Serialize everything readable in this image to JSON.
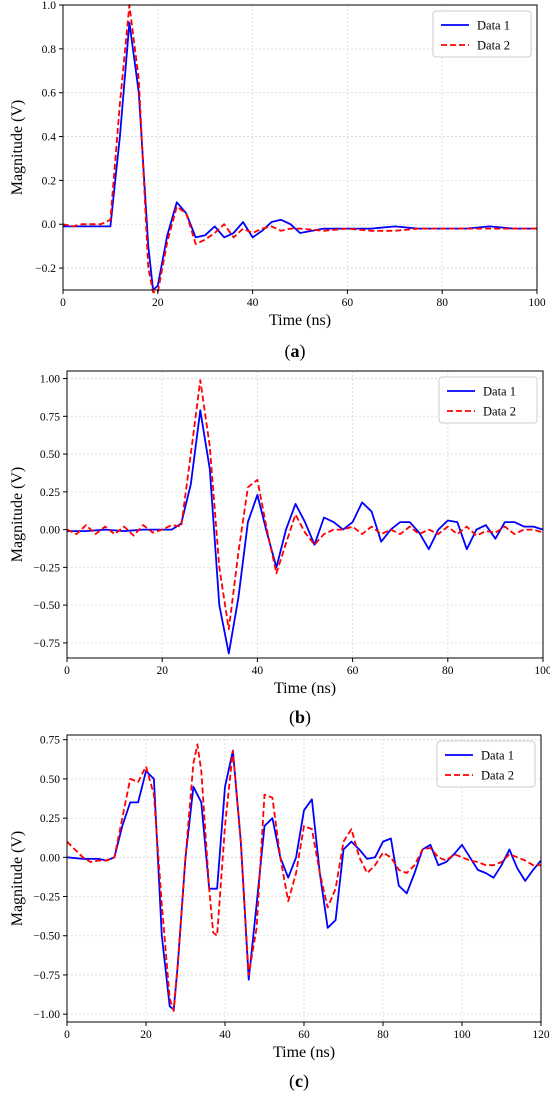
{
  "chart_data": [
    {
      "type": "line",
      "panel": "a",
      "caption": "(a)",
      "xlabel": "Time (ns)",
      "ylabel": "Magnitude (V)",
      "xlim": [
        0,
        100
      ],
      "ylim": [
        -0.3,
        1.0
      ],
      "xticks": [
        0,
        20,
        40,
        60,
        80,
        100
      ],
      "yticks": [
        -0.2,
        0.0,
        0.2,
        0.4,
        0.6,
        0.8,
        1.0
      ],
      "ytick_decimals": 1,
      "grid": true,
      "legend_position": "top-right",
      "series": [
        {
          "name": "Data 1",
          "color": "#0000ff",
          "style": "solid",
          "x": [
            0,
            2,
            4,
            6,
            8,
            10,
            12,
            14,
            16,
            18,
            19,
            20,
            22,
            24,
            26,
            28,
            30,
            32,
            34,
            36,
            38,
            40,
            42,
            44,
            46,
            48,
            50,
            55,
            60,
            65,
            70,
            75,
            80,
            85,
            90,
            95,
            100
          ],
          "y": [
            -0.01,
            -0.01,
            -0.01,
            -0.01,
            -0.01,
            -0.01,
            0.4,
            0.92,
            0.6,
            -0.1,
            -0.3,
            -0.28,
            -0.05,
            0.1,
            0.05,
            -0.06,
            -0.05,
            -0.01,
            -0.06,
            -0.04,
            0.01,
            -0.06,
            -0.03,
            0.01,
            0.02,
            0.0,
            -0.04,
            -0.02,
            -0.02,
            -0.02,
            -0.01,
            -0.02,
            -0.02,
            -0.02,
            -0.01,
            -0.02,
            -0.02
          ]
        },
        {
          "name": "Data 2",
          "color": "#ff0000",
          "style": "dashed",
          "x": [
            0,
            2,
            4,
            6,
            8,
            10,
            12,
            14,
            16,
            18,
            19,
            20,
            22,
            24,
            26,
            28,
            30,
            32,
            34,
            36,
            38,
            40,
            42,
            44,
            46,
            48,
            50,
            55,
            60,
            65,
            70,
            75,
            80,
            85,
            90,
            95,
            100
          ],
          "y": [
            0.0,
            -0.01,
            0.0,
            0.0,
            0.0,
            0.02,
            0.55,
            1.0,
            0.66,
            -0.2,
            -0.31,
            -0.31,
            -0.08,
            0.08,
            0.05,
            -0.09,
            -0.07,
            -0.04,
            0.0,
            -0.06,
            -0.02,
            -0.04,
            -0.02,
            -0.01,
            -0.03,
            -0.02,
            -0.02,
            -0.03,
            -0.02,
            -0.03,
            -0.03,
            -0.02,
            -0.02,
            -0.02,
            -0.02,
            -0.02,
            -0.02
          ]
        }
      ]
    },
    {
      "type": "line",
      "panel": "b",
      "caption": "(b)",
      "xlabel": "Time (ns)",
      "ylabel": "Magnitude (V)",
      "xlim": [
        0,
        100
      ],
      "ylim": [
        -0.85,
        1.05
      ],
      "xticks": [
        0,
        20,
        40,
        60,
        80,
        100
      ],
      "yticks": [
        -0.75,
        -0.5,
        -0.25,
        0.0,
        0.25,
        0.5,
        0.75,
        1.0
      ],
      "ytick_decimals": 2,
      "grid": true,
      "legend_position": "top-right",
      "series": [
        {
          "name": "Data 1",
          "color": "#0000ff",
          "style": "solid",
          "x": [
            0,
            4,
            8,
            12,
            16,
            20,
            22,
            24,
            26,
            28,
            30,
            32,
            34,
            36,
            38,
            40,
            42,
            44,
            46,
            48,
            50,
            52,
            54,
            56,
            58,
            60,
            62,
            64,
            66,
            68,
            70,
            72,
            74,
            76,
            78,
            80,
            82,
            84,
            86,
            88,
            90,
            92,
            94,
            96,
            98,
            100
          ],
          "y": [
            -0.01,
            -0.01,
            0.0,
            -0.01,
            0.0,
            0.0,
            0.0,
            0.04,
            0.3,
            0.79,
            0.4,
            -0.5,
            -0.82,
            -0.45,
            0.05,
            0.23,
            -0.02,
            -0.25,
            0.0,
            0.17,
            0.05,
            -0.1,
            0.08,
            0.05,
            0.0,
            0.05,
            0.18,
            0.12,
            -0.08,
            0.0,
            0.05,
            0.05,
            -0.02,
            -0.13,
            0.0,
            0.06,
            0.05,
            -0.13,
            0.0,
            0.03,
            -0.06,
            0.05,
            0.05,
            0.02,
            0.02,
            0.0
          ]
        },
        {
          "name": "Data 2",
          "color": "#ff0000",
          "style": "dashed",
          "x": [
            0,
            2,
            4,
            6,
            8,
            10,
            12,
            14,
            16,
            18,
            20,
            22,
            24,
            26,
            28,
            30,
            32,
            34,
            36,
            38,
            40,
            42,
            44,
            46,
            48,
            50,
            52,
            54,
            56,
            58,
            60,
            62,
            64,
            66,
            68,
            70,
            72,
            74,
            76,
            78,
            80,
            82,
            84,
            86,
            88,
            90,
            92,
            94,
            96,
            98,
            100
          ],
          "y": [
            0.0,
            -0.03,
            0.03,
            -0.03,
            0.02,
            -0.03,
            0.02,
            -0.04,
            0.03,
            -0.02,
            0.0,
            0.03,
            0.02,
            0.5,
            0.99,
            0.55,
            -0.25,
            -0.66,
            -0.15,
            0.28,
            0.33,
            0.0,
            -0.29,
            -0.09,
            0.1,
            -0.02,
            -0.1,
            -0.03,
            0.0,
            0.0,
            0.02,
            -0.03,
            0.02,
            -0.03,
            0.0,
            -0.03,
            0.02,
            -0.03,
            0.0,
            -0.03,
            0.02,
            -0.03,
            0.02,
            -0.04,
            -0.01,
            -0.02,
            0.02,
            -0.03,
            0.0,
            0.0,
            -0.02
          ]
        }
      ]
    },
    {
      "type": "line",
      "panel": "c",
      "caption": "(c)",
      "xlabel": "Time (ns)",
      "ylabel": "Magnitude (V)",
      "xlim": [
        0,
        120
      ],
      "ylim": [
        -1.05,
        0.78
      ],
      "xticks": [
        0,
        20,
        40,
        60,
        80,
        100,
        120
      ],
      "yticks": [
        -1.0,
        -0.75,
        -0.5,
        -0.25,
        0.0,
        0.25,
        0.5,
        0.75
      ],
      "ytick_decimals": 2,
      "grid": true,
      "legend_position": "top-right",
      "series": [
        {
          "name": "Data 1",
          "color": "#0000ff",
          "style": "solid",
          "x": [
            0,
            4,
            8,
            10,
            12,
            14,
            16,
            18,
            20,
            22,
            24,
            26,
            27,
            28,
            30,
            32,
            34,
            36,
            38,
            40,
            42,
            44,
            46,
            48,
            50,
            52,
            54,
            56,
            58,
            60,
            62,
            64,
            66,
            68,
            70,
            72,
            74,
            76,
            78,
            80,
            82,
            84,
            86,
            88,
            90,
            92,
            94,
            96,
            98,
            100,
            102,
            104,
            106,
            108,
            110,
            112,
            114,
            116,
            118,
            120
          ],
          "y": [
            0.0,
            -0.01,
            -0.01,
            -0.02,
            0.0,
            0.2,
            0.35,
            0.35,
            0.55,
            0.5,
            -0.5,
            -0.95,
            -0.97,
            -0.7,
            0.0,
            0.45,
            0.35,
            -0.2,
            -0.2,
            0.45,
            0.68,
            0.1,
            -0.78,
            -0.3,
            0.2,
            0.25,
            0.0,
            -0.13,
            0.0,
            0.3,
            0.37,
            -0.1,
            -0.45,
            -0.4,
            0.05,
            0.1,
            0.05,
            -0.01,
            0.0,
            0.1,
            0.12,
            -0.18,
            -0.23,
            -0.1,
            0.05,
            0.08,
            -0.05,
            -0.03,
            0.02,
            0.08,
            0.0,
            -0.08,
            -0.1,
            -0.13,
            -0.05,
            0.05,
            -0.07,
            -0.15,
            -0.08,
            -0.02
          ]
        },
        {
          "name": "Data 2",
          "color": "#ff0000",
          "style": "dashed",
          "x": [
            0,
            2,
            4,
            6,
            8,
            10,
            12,
            14,
            16,
            18,
            20,
            22,
            24,
            26,
            27,
            28,
            30,
            32,
            33,
            34,
            36,
            37,
            38,
            40,
            42,
            44,
            46,
            48,
            50,
            52,
            54,
            56,
            58,
            60,
            62,
            64,
            66,
            68,
            70,
            72,
            74,
            76,
            78,
            80,
            82,
            84,
            86,
            88,
            90,
            92,
            94,
            96,
            98,
            100,
            102,
            104,
            106,
            108,
            110,
            112,
            114,
            116,
            118,
            120
          ],
          "y": [
            0.1,
            0.05,
            0.0,
            -0.03,
            -0.02,
            -0.02,
            0.0,
            0.25,
            0.5,
            0.48,
            0.58,
            0.4,
            -0.3,
            -0.9,
            -0.98,
            -0.7,
            0.0,
            0.6,
            0.72,
            0.55,
            -0.2,
            -0.48,
            -0.5,
            0.2,
            0.68,
            0.1,
            -0.75,
            -0.45,
            0.4,
            0.38,
            0.0,
            -0.28,
            -0.1,
            0.2,
            0.18,
            -0.1,
            -0.32,
            -0.2,
            0.1,
            0.18,
            0.0,
            -0.1,
            -0.05,
            0.03,
            0.0,
            -0.08,
            -0.1,
            -0.05,
            0.05,
            0.06,
            0.0,
            -0.02,
            0.02,
            0.0,
            -0.02,
            -0.03,
            -0.05,
            -0.05,
            -0.03,
            0.02,
            0.0,
            -0.02,
            -0.05,
            -0.05
          ]
        }
      ]
    }
  ]
}
